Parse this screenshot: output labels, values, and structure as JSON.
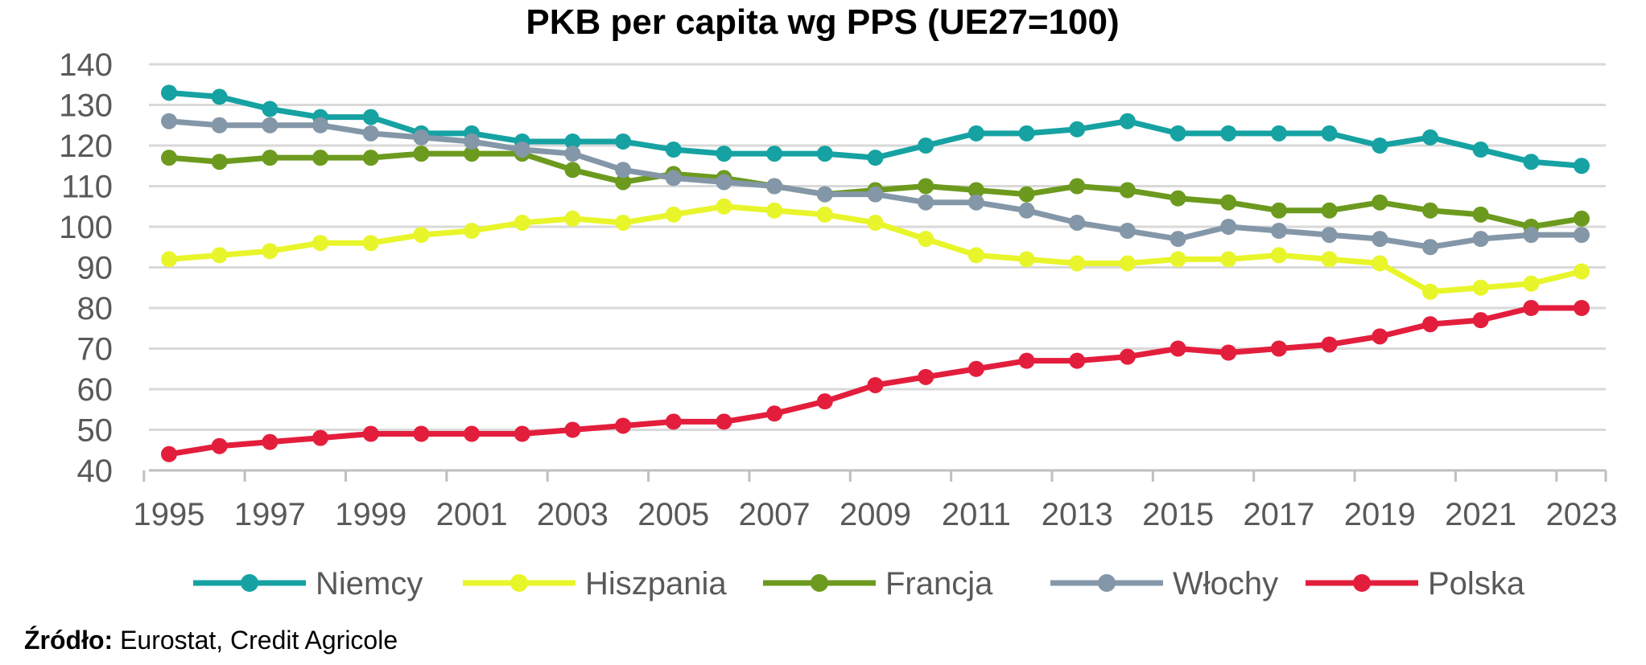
{
  "chart_data": {
    "type": "line",
    "title": "PKB per capita wg PPS (UE27=100)",
    "xlabel": "",
    "ylabel": "",
    "ylim": [
      40,
      140
    ],
    "yticks": [
      40,
      50,
      60,
      70,
      80,
      90,
      100,
      110,
      120,
      130,
      140
    ],
    "x": [
      1995,
      1996,
      1997,
      1998,
      1999,
      2000,
      2001,
      2002,
      2003,
      2004,
      2005,
      2006,
      2007,
      2008,
      2009,
      2010,
      2011,
      2012,
      2013,
      2014,
      2015,
      2016,
      2017,
      2018,
      2019,
      2020,
      2021,
      2022,
      2023
    ],
    "xticks": [
      1995,
      1997,
      1999,
      2001,
      2003,
      2005,
      2007,
      2009,
      2011,
      2013,
      2015,
      2017,
      2019,
      2021,
      2023
    ],
    "grid": true,
    "legend_position": "bottom",
    "series": [
      {
        "name": "Niemcy",
        "color": "#16a2a2",
        "values": [
          133,
          132,
          129,
          127,
          127,
          123,
          123,
          121,
          121,
          121,
          119,
          118,
          118,
          118,
          117,
          120,
          123,
          123,
          124,
          126,
          123,
          123,
          123,
          123,
          120,
          122,
          119,
          116,
          115
        ]
      },
      {
        "name": "Hiszpania",
        "color": "#e8f52a",
        "values": [
          92,
          93,
          94,
          96,
          96,
          98,
          99,
          101,
          102,
          101,
          103,
          105,
          104,
          103,
          101,
          97,
          93,
          92,
          91,
          91,
          92,
          92,
          93,
          92,
          91,
          84,
          85,
          86,
          89
        ]
      },
      {
        "name": "Francja",
        "color": "#6c9a1e",
        "values": [
          117,
          116,
          117,
          117,
          117,
          118,
          118,
          118,
          114,
          111,
          113,
          112,
          110,
          108,
          109,
          110,
          109,
          108,
          110,
          109,
          107,
          106,
          104,
          104,
          106,
          104,
          103,
          100,
          102
        ]
      },
      {
        "name": "Włochy",
        "color": "#8497a8",
        "values": [
          126,
          125,
          125,
          125,
          123,
          122,
          121,
          119,
          118,
          114,
          112,
          111,
          110,
          108,
          108,
          106,
          106,
          104,
          101,
          99,
          97,
          100,
          99,
          98,
          97,
          95,
          97,
          98,
          98
        ]
      },
      {
        "name": "Polska",
        "color": "#e31e3c",
        "values": [
          44,
          46,
          47,
          48,
          49,
          49,
          49,
          49,
          50,
          51,
          52,
          52,
          54,
          57,
          61,
          63,
          65,
          67,
          67,
          68,
          70,
          69,
          70,
          71,
          73,
          76,
          77,
          80,
          80
        ]
      }
    ]
  },
  "source": {
    "label": "Źródło:",
    "text": "Eurostat, Credit  Agricole"
  }
}
